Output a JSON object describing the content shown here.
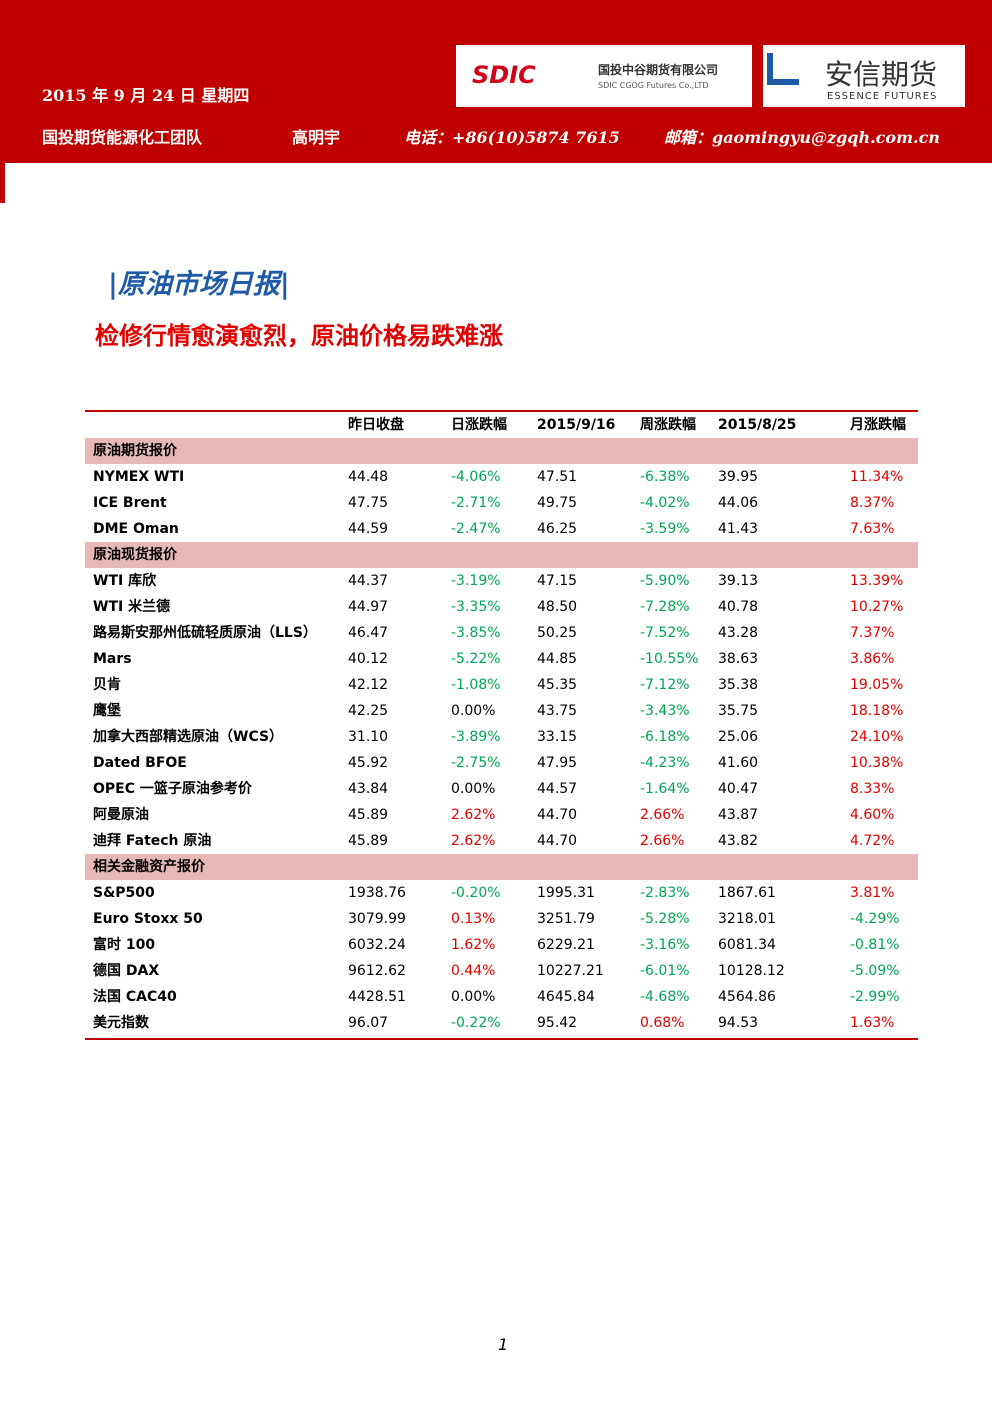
{
  "header": {
    "date": "2015 年 9 月 24 日 星期四",
    "team": "国投期货能源化工团队",
    "author": "高明宇",
    "phone": "电话：+86(10)5874 7615",
    "email": "邮箱：gaomingyu@zgqh.com.cn",
    "logo1": {
      "mark": "SDIC",
      "name": "国投中谷期货有限公司",
      "english": "SDIC CGOG Futures Co.,LTD"
    },
    "logo2": {
      "name": "安信期货",
      "english": "ESSENCE FUTURES"
    }
  },
  "report": {
    "title": "|原油市场日报|",
    "subtitle": "检修行情愈演愈烈，原油价格易跌难涨"
  },
  "table": {
    "columns": [
      "昨日收盘",
      "日涨跌幅",
      "2015/9/16",
      "周涨跌幅",
      "2015/8/25",
      "月涨跌幅"
    ],
    "sections": [
      {
        "title": "原油期货报价",
        "rows": [
          [
            "NYMEX WTI",
            "44.48",
            "-4.06%",
            "47.51",
            "-6.38%",
            "39.95",
            "11.34%"
          ],
          [
            "ICE Brent",
            "47.75",
            "-2.71%",
            "49.75",
            "-4.02%",
            "44.06",
            "8.37%"
          ],
          [
            "DME Oman",
            "44.59",
            "-2.47%",
            "46.25",
            "-3.59%",
            "41.43",
            "7.63%"
          ]
        ]
      },
      {
        "title": "原油现货报价",
        "rows": [
          [
            "WTI 库欣",
            "44.37",
            "-3.19%",
            "47.15",
            "-5.90%",
            "39.13",
            "13.39%"
          ],
          [
            "WTI 米兰德",
            "44.97",
            "-3.35%",
            "48.50",
            "-7.28%",
            "40.78",
            "10.27%"
          ],
          [
            "路易斯安那州低硫轻质原油（LLS）",
            "46.47",
            "-3.85%",
            "50.25",
            "-7.52%",
            "43.28",
            "7.37%"
          ],
          [
            "Mars",
            "40.12",
            "-5.22%",
            "44.85",
            "-10.55%",
            "38.63",
            "3.86%"
          ],
          [
            "贝肯",
            "42.12",
            "-1.08%",
            "45.35",
            "-7.12%",
            "35.38",
            "19.05%"
          ],
          [
            "鹰堡",
            "42.25",
            "0.00%",
            "43.75",
            "-3.43%",
            "35.75",
            "18.18%"
          ],
          [
            "加拿大西部精选原油（WCS）",
            "31.10",
            "-3.89%",
            "33.15",
            "-6.18%",
            "25.06",
            "24.10%"
          ],
          [
            "Dated BFOE",
            "45.92",
            "-2.75%",
            "47.95",
            "-4.23%",
            "41.60",
            "10.38%"
          ],
          [
            "OPEC 一篮子原油参考价",
            "43.84",
            "0.00%",
            "44.57",
            "-1.64%",
            "40.47",
            "8.33%"
          ],
          [
            "阿曼原油",
            "45.89",
            "2.62%",
            "44.70",
            "2.66%",
            "43.87",
            "4.60%"
          ],
          [
            "迪拜 Fatech 原油",
            "45.89",
            "2.62%",
            "44.70",
            "2.66%",
            "43.82",
            "4.72%"
          ]
        ]
      },
      {
        "title": "相关金融资产报价",
        "rows": [
          [
            "S&P500",
            "1938.76",
            "-0.20%",
            "1995.31",
            "-2.83%",
            "1867.61",
            "3.81%"
          ],
          [
            "Euro Stoxx 50",
            "3079.99",
            "0.13%",
            "3251.79",
            "-5.28%",
            "3218.01",
            "-4.29%"
          ],
          [
            "富时 100",
            "6032.24",
            "1.62%",
            "6229.21",
            "-3.16%",
            "6081.34",
            "-0.81%"
          ],
          [
            "德国 DAX",
            "9612.62",
            "0.44%",
            "10227.21",
            "-6.01%",
            "10128.12",
            "-5.09%"
          ],
          [
            "法国 CAC40",
            "4428.51",
            "0.00%",
            "4645.84",
            "-4.68%",
            "4564.86",
            "-2.99%"
          ],
          [
            "美元指数",
            "96.07",
            "-0.22%",
            "95.42",
            "0.68%",
            "94.53",
            "1.63%"
          ]
        ]
      }
    ]
  },
  "footer": {
    "page": "1"
  }
}
